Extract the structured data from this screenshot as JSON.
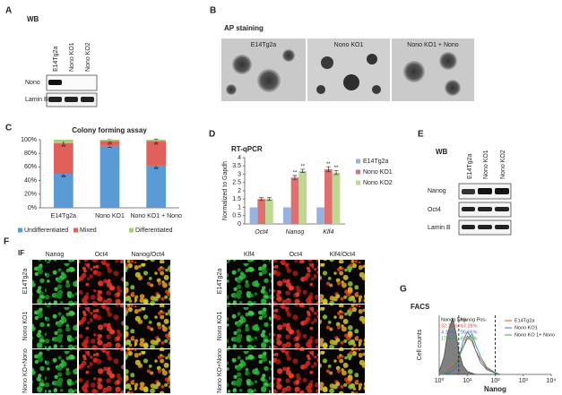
{
  "panels": {
    "A": {
      "letter": "A",
      "title": "WB",
      "columns": [
        "E14Tg2a",
        "Nono KO1",
        "Nono KO2"
      ],
      "rows": [
        "Nono",
        "Lamin B"
      ]
    },
    "B": {
      "letter": "B",
      "title": "AP staining",
      "images": [
        "E14Tg2a",
        "Nono KO1",
        "Nono KO1 + Nono"
      ]
    },
    "C": {
      "letter": "C"
    },
    "D": {
      "letter": "D"
    },
    "E": {
      "letter": "E",
      "title": "WB",
      "columns": [
        "E14Tg2a",
        "Nono KO1",
        "Nono KO2"
      ],
      "rows": [
        "Nanog",
        "Oct4",
        "Lamin B"
      ]
    },
    "F": {
      "letter": "F",
      "title": "IF",
      "groups": [
        {
          "columns": [
            "Nanog",
            "Oct4",
            "Nanog/Oct4"
          ],
          "rows": [
            "E14Tg2a",
            "Nono KO1",
            "Nono KO+Nono"
          ]
        },
        {
          "columns": [
            "Klf4",
            "Oct4",
            "Klf4/Oct4"
          ],
          "rows": [
            "E14Tg2a",
            "Nono KO1",
            "Nono KO+Nono"
          ]
        }
      ]
    },
    "G": {
      "letter": "G"
    }
  },
  "chart_data": [
    {
      "type": "bar",
      "stacked": true,
      "title": "Colony forming assay",
      "categories": [
        "E14Tg2a",
        "Nono KO1",
        "Nono KO1 + Nono"
      ],
      "series": [
        {
          "name": "Undifferentiated",
          "color": "#5b9bd5",
          "values": [
            50,
            91,
            62
          ],
          "errors": [
            3,
            2,
            3
          ],
          "significance": [
            "**",
            null,
            "**"
          ]
        },
        {
          "name": "Mixed",
          "color": "#e0615a",
          "values": [
            45,
            7,
            36
          ],
          "errors": [
            3,
            2,
            3
          ],
          "significance": [
            "**",
            "**",
            "**"
          ]
        },
        {
          "name": "Differentiated",
          "color": "#a5cf7f",
          "values": [
            5,
            2,
            2
          ],
          "significance": [
            "*",
            null,
            null
          ]
        }
      ],
      "ylim": [
        0,
        100
      ],
      "yticks": [
        {
          "value": 0,
          "label": "0%"
        },
        {
          "value": 20,
          "label": "20%"
        },
        {
          "value": 40,
          "label": "40%"
        },
        {
          "value": 60,
          "label": "60%"
        },
        {
          "value": 80,
          "label": "80%"
        },
        {
          "value": 100,
          "label": "100%"
        }
      ],
      "legend": "bottom"
    },
    {
      "type": "bar",
      "stacked": false,
      "title": "RT-qPCR",
      "ylabel": "Normalized to Gapdh",
      "categories": [
        "Oct4",
        "Nanog",
        "Klf4"
      ],
      "series": [
        {
          "name": "E14Tg2a",
          "color": "#95b3e0",
          "values": [
            1,
            1,
            1
          ]
        },
        {
          "name": "Nono KO1",
          "color": "#e07070",
          "values": [
            1.5,
            2.8,
            3.3
          ],
          "errors": [
            0.08,
            0.12,
            0.15
          ],
          "significance": [
            null,
            "**",
            "**"
          ]
        },
        {
          "name": "Nono KO2",
          "color": "#bcd98f",
          "values": [
            1.5,
            3.2,
            3.1
          ],
          "errors": [
            0.08,
            0.1,
            0.12
          ],
          "significance": [
            null,
            "**",
            "**"
          ]
        }
      ],
      "ylim": [
        0,
        4
      ],
      "yticks": [
        0,
        0.5,
        1,
        1.5,
        2,
        2.5,
        3,
        3.5,
        4
      ],
      "legend": "right"
    },
    {
      "type": "line",
      "title": "FACS",
      "xlabel": "Nanog",
      "ylabel": "Cell counts",
      "log_x": true,
      "x": [
        1,
        1.5,
        2,
        3,
        4,
        5,
        7,
        10,
        15,
        20,
        30,
        50,
        100,
        150
      ],
      "series": [
        {
          "color": "#808080",
          "fill": true,
          "values": [
            5,
            30,
            70,
            95,
            70,
            40,
            15,
            5,
            2,
            0,
            0,
            0,
            0,
            0
          ]
        },
        {
          "name": "E14Tg2a",
          "color": "#e8413c",
          "values": [
            0,
            2,
            5,
            12,
            20,
            30,
            45,
            65,
            55,
            40,
            25,
            10,
            3,
            0
          ],
          "neg_label": "32.72%",
          "pos_label": "67.28%"
        },
        {
          "name": "Nono KO1",
          "color": "#4a6fc4",
          "values": [
            0,
            0,
            2,
            5,
            12,
            25,
            55,
            72,
            60,
            40,
            20,
            8,
            2,
            0
          ],
          "neg_label": "4.34%",
          "pos_label": "95.66%"
        },
        {
          "name": "Nono KO 1+ Nono",
          "color": "#2ea24a",
          "values": [
            0,
            1,
            4,
            10,
            18,
            28,
            45,
            60,
            68,
            50,
            30,
            12,
            3,
            0
          ],
          "neg_label": "17.40%",
          "pos_label": "82.60%"
        }
      ],
      "xlim": [
        1,
        10000
      ],
      "xticks": [
        {
          "value": 1,
          "label": "10⁰"
        },
        {
          "value": 10,
          "label": "10¹"
        },
        {
          "value": 100,
          "label": "10²"
        },
        {
          "value": 1000,
          "label": "10³"
        },
        {
          "value": 10000,
          "label": "10⁴"
        }
      ],
      "ylim": [
        0,
        100
      ],
      "gates": [
        5,
        100
      ],
      "gate_labels": [
        "Nanog Neg-",
        "Nanog Pos-"
      ],
      "legend": "upper right"
    }
  ]
}
